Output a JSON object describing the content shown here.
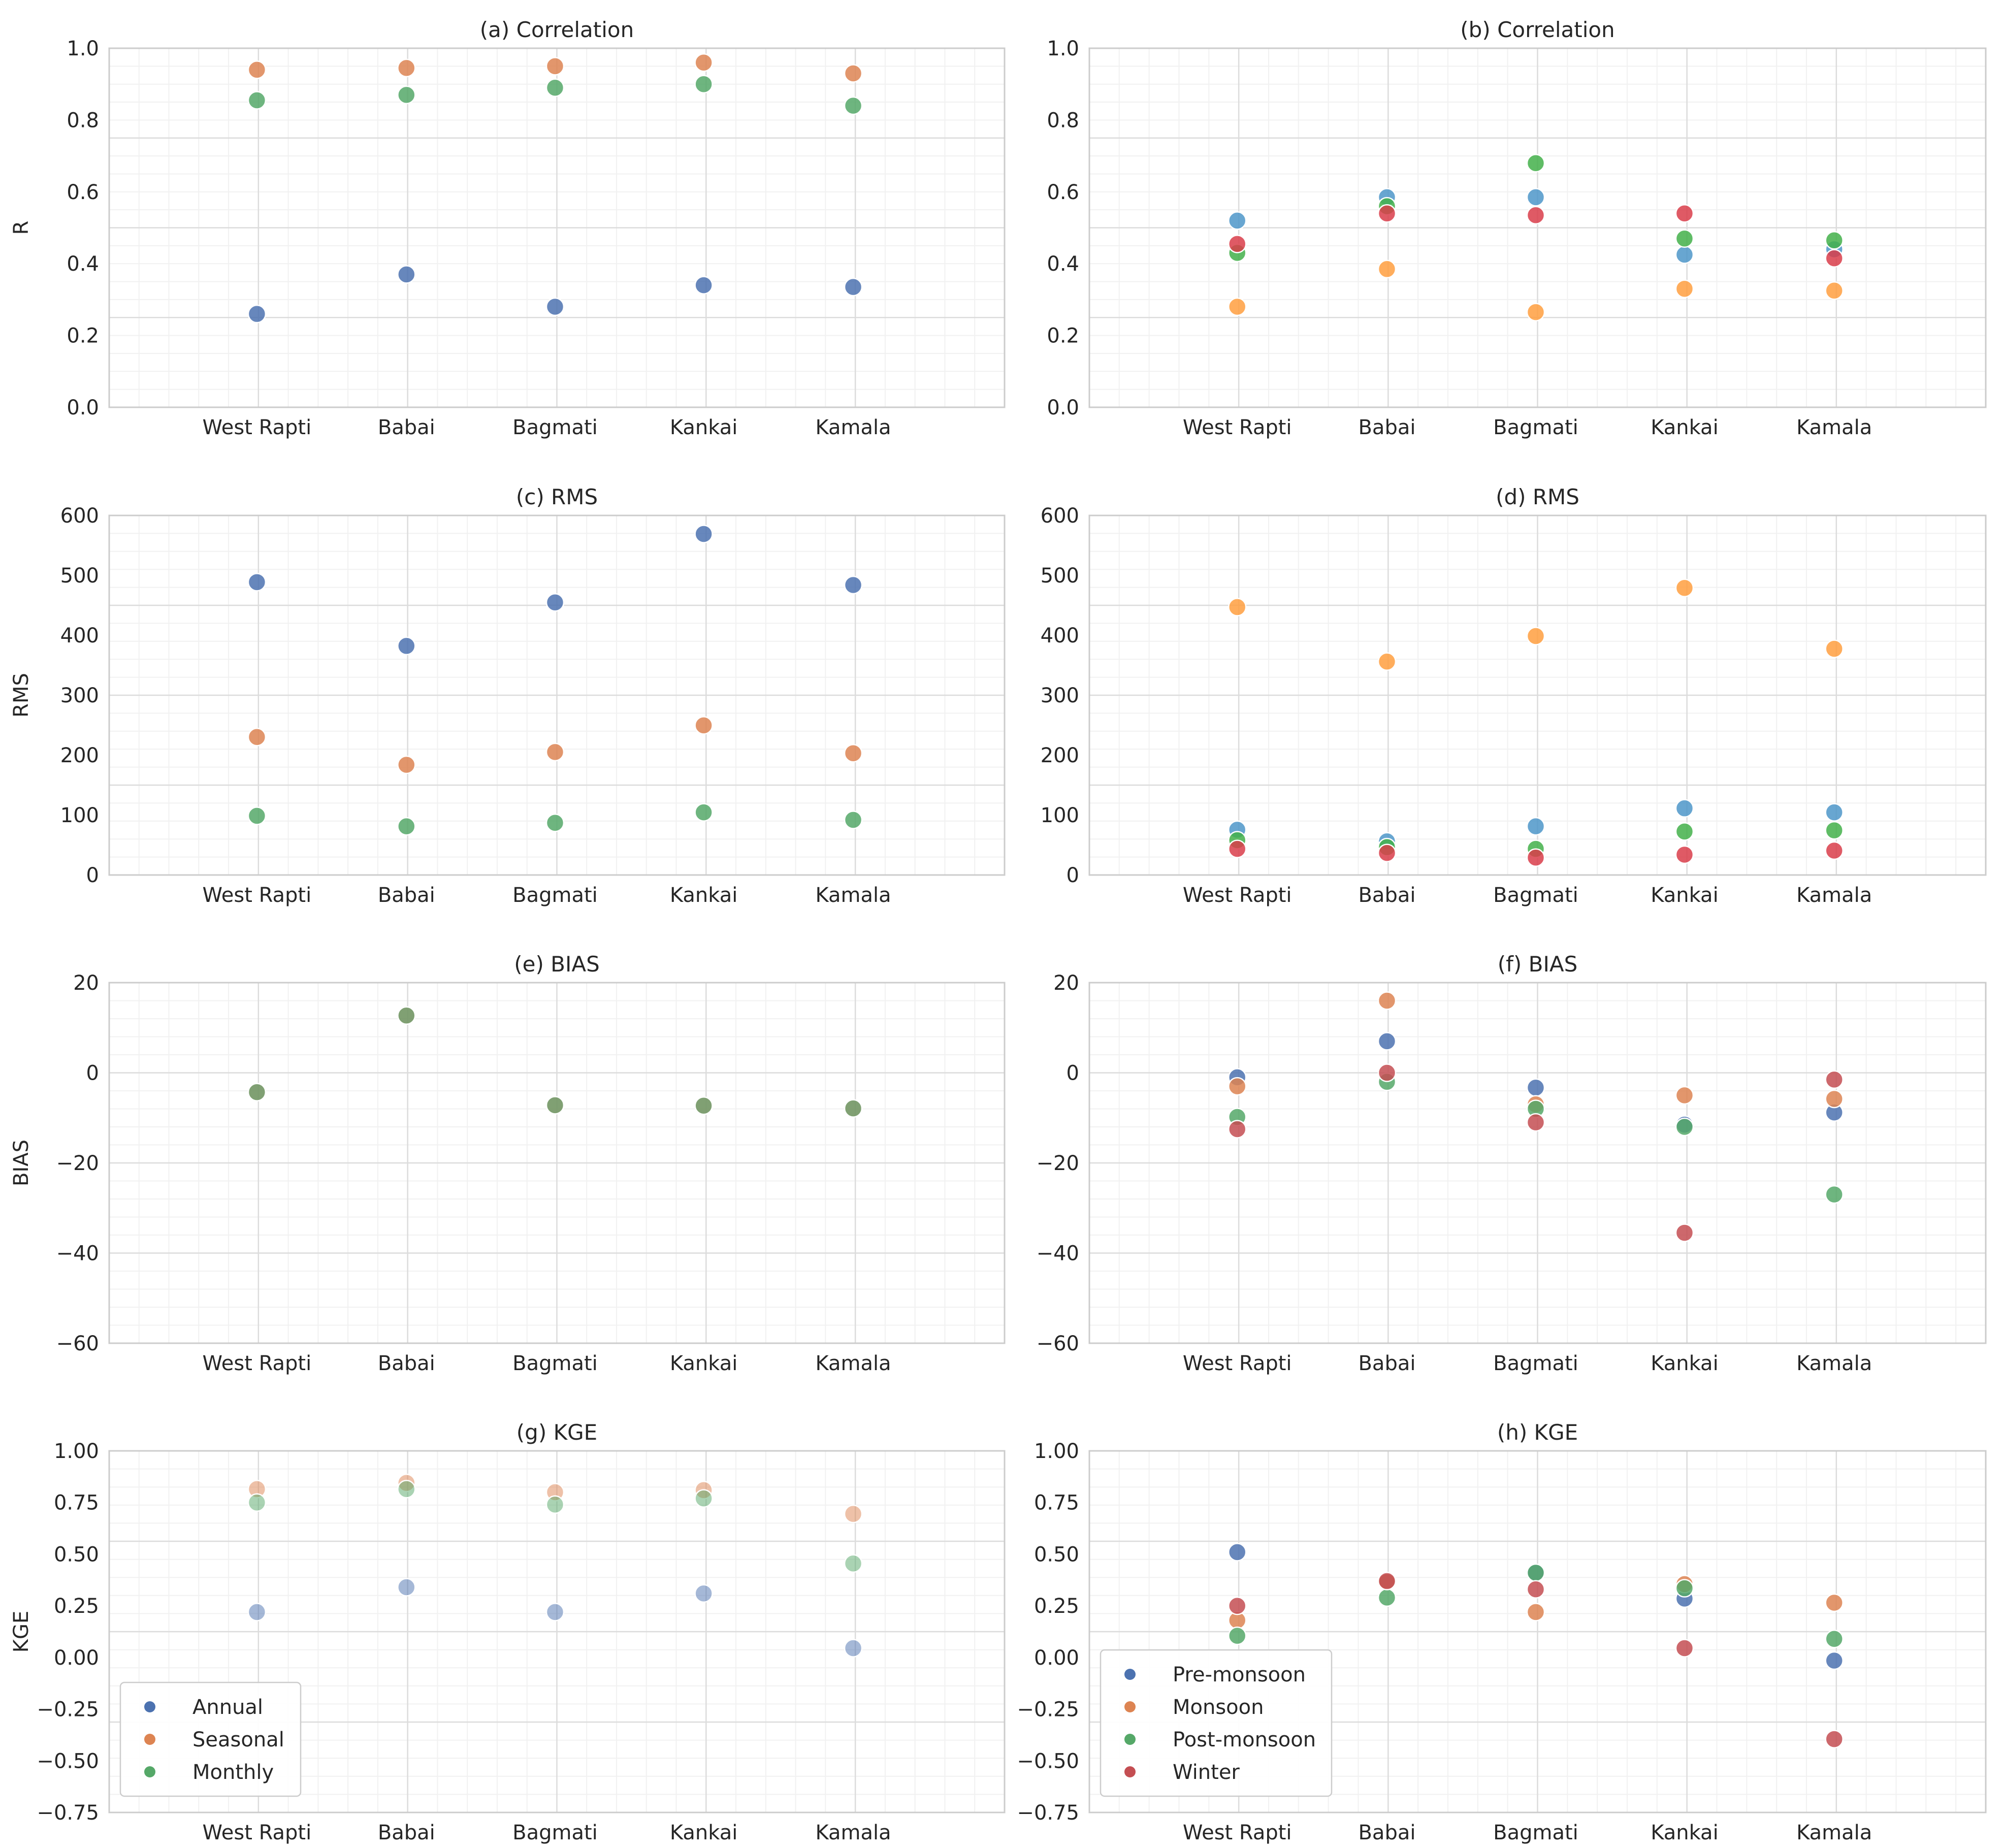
{
  "chart_data": [
    {
      "type": "scatter",
      "title": "(a) Correlation",
      "ylabel": "R",
      "categories": [
        "West Rapti",
        "Babai",
        "Bagmati",
        "Kankai",
        "Kamala"
      ],
      "ylim": [
        0,
        1.0
      ],
      "yticks": [
        "0.0",
        "0.2",
        "0.4",
        "0.6",
        "0.8",
        "1.0"
      ],
      "grid": true,
      "alpha": 0.85,
      "series": [
        {
          "name": "Annual",
          "color": "#4c72b0",
          "values": [
            0.26,
            0.37,
            0.28,
            0.34,
            0.335
          ]
        },
        {
          "name": "Seasonal",
          "color": "#dd8452",
          "values": [
            0.94,
            0.945,
            0.95,
            0.96,
            0.93
          ]
        },
        {
          "name": "Monthly",
          "color": "#55a868",
          "values": [
            0.855,
            0.87,
            0.89,
            0.9,
            0.84
          ]
        }
      ]
    },
    {
      "type": "scatter",
      "title": "(b) Correlation",
      "ylabel": "",
      "categories": [
        "West Rapti",
        "Babai",
        "Bagmati",
        "Kankai",
        "Kamala"
      ],
      "ylim": [
        0,
        1.0
      ],
      "yticks": [
        "0.0",
        "0.2",
        "0.4",
        "0.6",
        "0.8",
        "1.0"
      ],
      "grid": true,
      "alpha": 0.85,
      "series": [
        {
          "name": "",
          "color": "#ff9f40",
          "values": [
            0.28,
            0.385,
            0.265,
            0.33,
            0.325
          ]
        },
        {
          "name": "",
          "color": "#4e97c9",
          "values": [
            0.52,
            0.585,
            0.585,
            0.425,
            0.44
          ]
        },
        {
          "name": "",
          "color": "#43b04a",
          "values": [
            0.43,
            0.56,
            0.68,
            0.47,
            0.465
          ]
        },
        {
          "name": "",
          "color": "#d93d4a",
          "values": [
            0.455,
            0.54,
            0.535,
            0.54,
            0.415
          ]
        }
      ]
    },
    {
      "type": "scatter",
      "title": "(c) RMS",
      "ylabel": "RMS",
      "categories": [
        "West Rapti",
        "Babai",
        "Bagmati",
        "Kankai",
        "Kamala"
      ],
      "ylim": [
        0,
        620
      ],
      "yticks": [
        "0",
        "100",
        "200",
        "300",
        "400",
        "500",
        "600"
      ],
      "grid": true,
      "alpha": 0.85,
      "series": [
        {
          "name": "Annual",
          "color": "#4c72b0",
          "values": [
            505,
            395,
            470,
            588,
            500
          ]
        },
        {
          "name": "Seasonal",
          "color": "#dd8452",
          "values": [
            238,
            190,
            212,
            258,
            210
          ]
        },
        {
          "name": "Monthly",
          "color": "#55a868",
          "values": [
            102,
            84,
            90,
            108,
            95
          ]
        }
      ]
    },
    {
      "type": "scatter",
      "title": "(d) RMS",
      "ylabel": "",
      "categories": [
        "West Rapti",
        "Babai",
        "Bagmati",
        "Kankai",
        "Kamala"
      ],
      "ylim": [
        0,
        620
      ],
      "yticks": [
        "0",
        "100",
        "200",
        "300",
        "400",
        "500",
        "600"
      ],
      "grid": true,
      "alpha": 0.85,
      "series": [
        {
          "name": "",
          "color": "#ff9f40",
          "values": [
            462,
            368,
            412,
            495,
            390
          ]
        },
        {
          "name": "",
          "color": "#4e97c9",
          "values": [
            78,
            58,
            84,
            115,
            108
          ]
        },
        {
          "name": "",
          "color": "#43b04a",
          "values": [
            60,
            48,
            45,
            75,
            77
          ]
        },
        {
          "name": "",
          "color": "#d93d4a",
          "values": [
            45,
            38,
            30,
            35,
            42
          ]
        }
      ]
    },
    {
      "type": "scatter",
      "title": "(e) BIAS",
      "ylabel": "BIAS",
      "categories": [
        "West Rapti",
        "Babai",
        "Bagmati",
        "Kankai",
        "Kamala"
      ],
      "ylim": [
        -60,
        20
      ],
      "yticks": [
        "−60",
        "−40",
        "−20",
        "0",
        "20"
      ],
      "grid": true,
      "alpha": 0.6,
      "series": [
        {
          "name": "Annual",
          "color": "#4c72b0",
          "values": [
            -4.3,
            12.7,
            -7.2,
            -7.3,
            -7.9
          ]
        },
        {
          "name": "Seasonal",
          "color": "#dd8452",
          "values": [
            -4.3,
            12.7,
            -7.2,
            -7.3,
            -7.9
          ]
        },
        {
          "name": "Monthly",
          "color": "#55a868",
          "values": [
            -4.3,
            12.7,
            -7.2,
            -7.3,
            -7.9
          ]
        }
      ]
    },
    {
      "type": "scatter",
      "title": "(f) BIAS",
      "ylabel": "",
      "categories": [
        "West Rapti",
        "Babai",
        "Bagmati",
        "Kankai",
        "Kamala"
      ],
      "ylim": [
        -60,
        20
      ],
      "yticks": [
        "−60",
        "−40",
        "−20",
        "0",
        "20"
      ],
      "grid": true,
      "alpha": 0.85,
      "series": [
        {
          "name": "Pre-monsoon",
          "color": "#4c72b0",
          "values": [
            -1.0,
            7.0,
            -3.3,
            -11.5,
            -8.8
          ]
        },
        {
          "name": "Monsoon",
          "color": "#dd8452",
          "values": [
            -3.0,
            16.0,
            -7.0,
            -5.0,
            -5.8
          ]
        },
        {
          "name": "Post-monsoon",
          "color": "#55a868",
          "values": [
            -9.8,
            -2.0,
            -8.0,
            -12.0,
            -27.0
          ]
        },
        {
          "name": "Winter",
          "color": "#c44e52",
          "values": [
            -12.5,
            0.0,
            -11.0,
            -35.5,
            -1.5
          ]
        }
      ]
    },
    {
      "type": "scatter",
      "title": "(g) KGE",
      "ylabel": "KGE",
      "categories": [
        "West Rapti",
        "Babai",
        "Bagmati",
        "Kankai",
        "Kamala"
      ],
      "ylim": [
        -0.75,
        1.0
      ],
      "yticks": [
        "−0.75",
        "−0.50",
        "−0.25",
        "0.00",
        "0.25",
        "0.50",
        "0.75",
        "1.00"
      ],
      "grid": true,
      "alpha": 0.5,
      "series": [
        {
          "name": "Annual",
          "color": "#4c72b0",
          "values": [
            0.22,
            0.34,
            0.22,
            0.31,
            0.045
          ]
        },
        {
          "name": "Seasonal",
          "color": "#dd8452",
          "values": [
            0.815,
            0.845,
            0.8,
            0.81,
            0.695
          ]
        },
        {
          "name": "Monthly",
          "color": "#55a868",
          "values": [
            0.75,
            0.815,
            0.74,
            0.77,
            0.455
          ]
        }
      ],
      "legend": {
        "location": "lower-left",
        "entries": [
          "Annual",
          "Seasonal",
          "Monthly"
        ]
      }
    },
    {
      "type": "scatter",
      "title": "(h) KGE",
      "ylabel": "",
      "categories": [
        "West Rapti",
        "Babai",
        "Bagmati",
        "Kankai",
        "Kamala"
      ],
      "ylim": [
        -0.75,
        1.0
      ],
      "yticks": [
        "−0.75",
        "−0.50",
        "−0.25",
        "0.00",
        "0.25",
        "0.50",
        "0.75",
        "1.00"
      ],
      "grid": true,
      "alpha": 0.85,
      "series": [
        {
          "name": "Pre-monsoon",
          "color": "#4c72b0",
          "values": [
            0.51,
            0.37,
            0.41,
            0.285,
            -0.015
          ]
        },
        {
          "name": "Monsoon",
          "color": "#dd8452",
          "values": [
            0.18,
            0.365,
            0.22,
            0.355,
            0.265
          ]
        },
        {
          "name": "Post-monsoon",
          "color": "#55a868",
          "values": [
            0.105,
            0.29,
            0.41,
            0.335,
            0.09
          ]
        },
        {
          "name": "Winter",
          "color": "#c44e52",
          "values": [
            0.25,
            0.37,
            0.33,
            0.045,
            -0.395
          ]
        }
      ],
      "legend": {
        "location": "lower-left",
        "entries": [
          "Pre-monsoon",
          "Monsoon",
          "Post-monsoon",
          "Winter"
        ]
      }
    }
  ]
}
